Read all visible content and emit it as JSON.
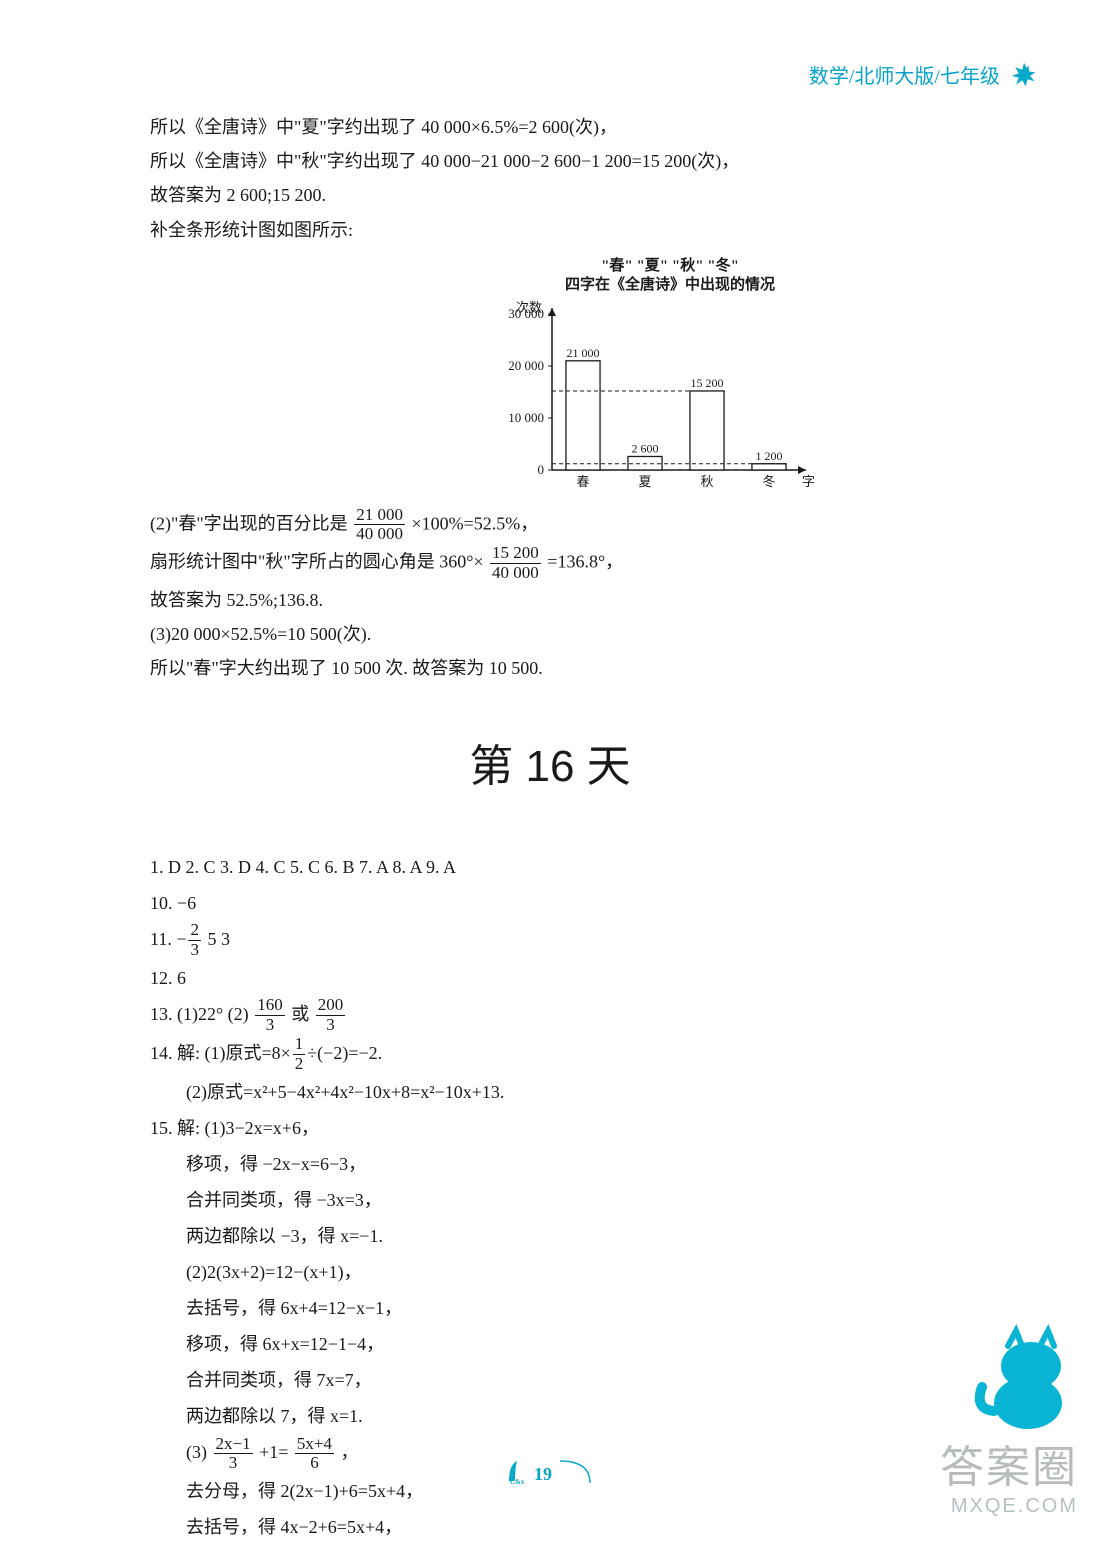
{
  "header": {
    "text": "数学/北师大版/七年级"
  },
  "intro_lines": [
    "所以《全唐诗》中\"夏\"字约出现了 40 000×6.5%=2 600(次)，",
    "所以《全唐诗》中\"秋\"字约出现了 40 000−21 000−2 600−1 200=15 200(次)，",
    "故答案为 2 600;15 200.",
    "补全条形统计图如图所示:"
  ],
  "chart": {
    "type": "bar",
    "title_line1": "\"春\"  \"夏\"  \"秋\"  \"冬\"",
    "title_line2": "四字在《全唐诗》中出现的情况",
    "y_label": "次数",
    "x_label": "字",
    "categories": [
      "春",
      "夏",
      "秋",
      "冬"
    ],
    "values": [
      21000,
      2600,
      15200,
      1200
    ],
    "y_ticks": [
      0,
      10000,
      20000,
      30000
    ],
    "y_tick_labels": [
      "0",
      "10 000",
      "20 000",
      "30 000"
    ],
    "y_max": 30000,
    "bar_label_strings": [
      "21 000",
      "2 600",
      "15 200",
      "1 200"
    ],
    "bar_fill": "#ffffff",
    "bar_stroke": "#1a1a1a",
    "dashed_indices": [
      2,
      3
    ],
    "axis_color": "#1a1a1a",
    "font_size": 13
  },
  "post_chart": {
    "l1_pre": "(2)\"春\"字出现的百分比是",
    "l1_num": "21 000",
    "l1_den": "40 000",
    "l1_post": "×100%=52.5%，",
    "l2_pre": "扇形统计图中\"秋\"字所占的圆心角是 360°×",
    "l2_num": "15 200",
    "l2_den": "40 000",
    "l2_post": "=136.8°，",
    "l3": "故答案为 52.5%;136.8.",
    "l4": "(3)20 000×52.5%=10 500(次).",
    "l5": "所以\"春\"字大约出现了 10 500 次. 故答案为 10 500."
  },
  "day_title": "第 16 天",
  "mc": "1. D  2. C  3. D  4. C  5. C  6. B  7. A  8. A  9. A",
  "q10": "10. −6",
  "q11": {
    "pre": "11. −",
    "num": "2",
    "den": "3",
    "post": "  5  3"
  },
  "q12": "12. 6",
  "q13": {
    "pre": "13. (1)22°   (2) ",
    "n1": "160",
    "d1": "3",
    "mid": "或",
    "n2": "200",
    "d2": "3"
  },
  "q14": {
    "l1_pre": "14. 解: (1)原式=8×",
    "l1_num": "1",
    "l1_den": "2",
    "l1_post": "÷(−2)=−2.",
    "l2": "(2)原式=x²+5−4x²+4x²−10x+8=x²−10x+13."
  },
  "q15": {
    "l1": "15. 解: (1)3−2x=x+6，",
    "l2": "移项，得 −2x−x=6−3，",
    "l3": "合并同类项，得 −3x=3，",
    "l4": "两边都除以 −3，得 x=−1.",
    "l5": "(2)2(3x+2)=12−(x+1)，",
    "l6": "去括号，得 6x+4=12−x−1，",
    "l7": "移项，得 6x+x=12−1−4，",
    "l8": "合并同类项，得 7x=7，",
    "l9": "两边都除以 7，得 x=1.",
    "l10_pre": "(3)",
    "l10_n1": "2x−1",
    "l10_d1": "3",
    "l10_mid": "+1=",
    "l10_n2": "5x+4",
    "l10_d2": "6",
    "l10_post": "，",
    "l11": "去分母，得 2(2x−1)+6=5x+4，",
    "l12": "去括号，得 4x−2+6=5x+4，"
  },
  "page_number": "19",
  "watermark": {
    "line1": "答案圈",
    "line2": "MXQE.COM"
  }
}
